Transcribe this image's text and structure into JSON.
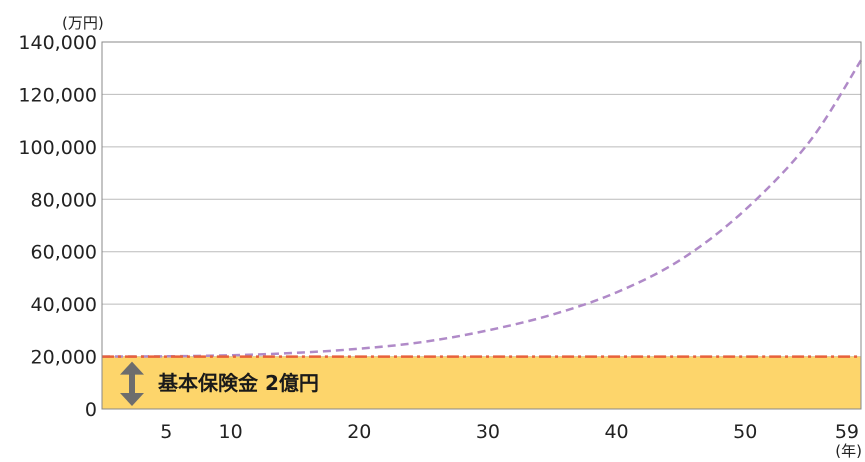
{
  "chart_data": {
    "type": "line",
    "y_unit": "(万円)",
    "x_unit": "(年)",
    "ylim": [
      0,
      140000
    ],
    "xlim": [
      0,
      59
    ],
    "y_ticks": [
      0,
      20000,
      40000,
      60000,
      80000,
      100000,
      120000,
      140000
    ],
    "y_tick_labels": [
      "0",
      "20,000",
      "40,000",
      "60,000",
      "80,000",
      "100,000",
      "120,000",
      "140,000"
    ],
    "x_ticks": [
      5,
      10,
      20,
      30,
      40,
      50,
      59
    ],
    "x_tick_labels": [
      "5",
      "10",
      "20",
      "30",
      "40",
      "50",
      "59"
    ],
    "grid": true,
    "series": [
      {
        "style": "dashed",
        "color": "#b08ac8",
        "x": [
          0,
          5,
          10,
          15,
          20,
          25,
          30,
          35,
          40,
          45,
          50,
          55,
          59
        ],
        "values": [
          20000,
          20100,
          20500,
          21400,
          23000,
          25600,
          30000,
          36000,
          44500,
          57000,
          76000,
          102000,
          133000
        ]
      },
      {
        "style": "dash-dot",
        "color": "#e8623a",
        "x": [
          0,
          59
        ],
        "values": [
          20000,
          20000
        ]
      }
    ],
    "band": {
      "from": 0,
      "to": 20000,
      "color": "#fdd56b",
      "label": "基本保険金 2億円",
      "arrow_color": "#6d6d6d"
    },
    "colors": {
      "grid": "#bbbbbb",
      "axis": "#888888"
    }
  }
}
